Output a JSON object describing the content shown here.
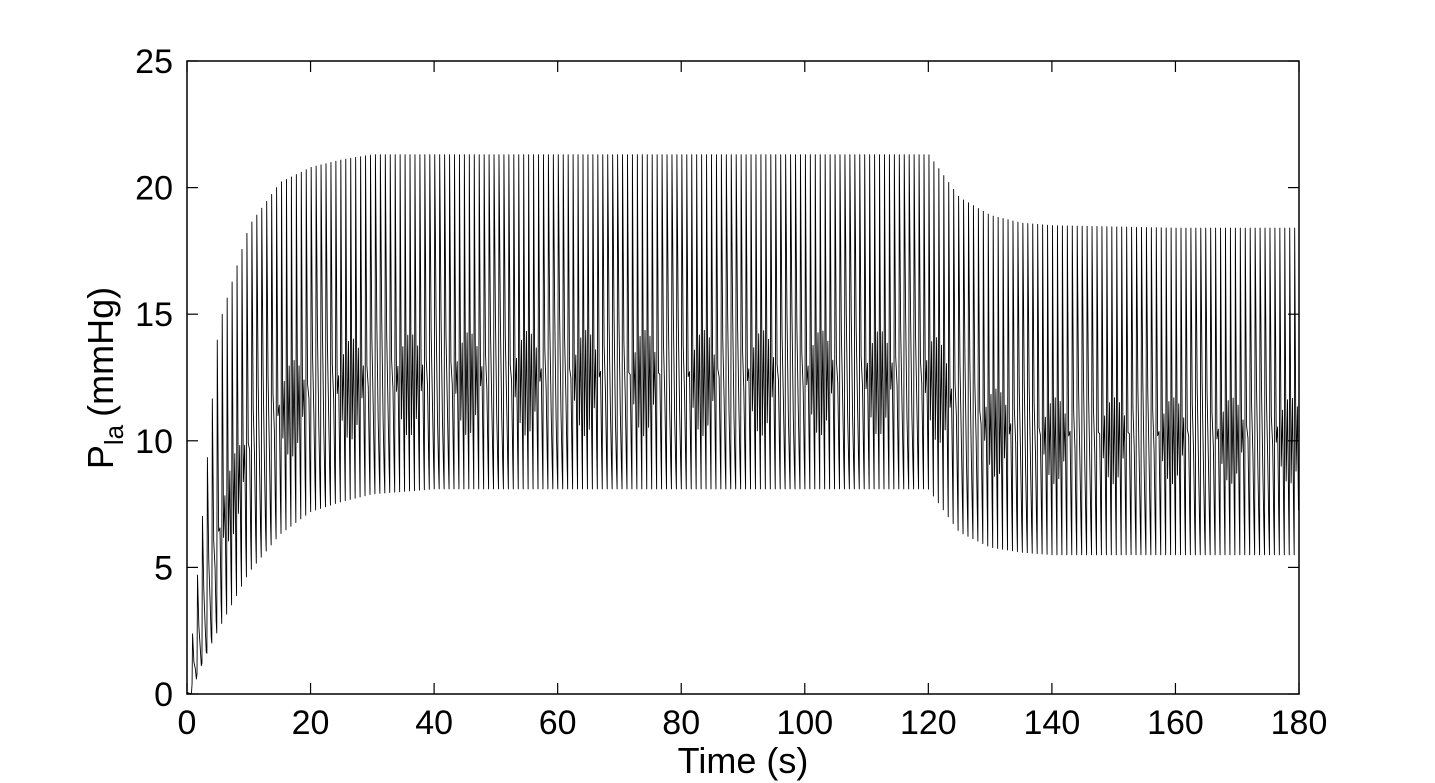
{
  "chart_data": {
    "type": "line",
    "xlabel": "Time (s)",
    "ylabel": {
      "main": "P",
      "subscript": "la",
      "unit": "(mmHg)"
    },
    "xlim": [
      0,
      180
    ],
    "ylim": [
      0,
      25
    ],
    "x_ticks": [
      "0",
      "20",
      "40",
      "60",
      "80",
      "100",
      "120",
      "140",
      "160",
      "180"
    ],
    "y_ticks": [
      "0",
      "5",
      "10",
      "15",
      "20",
      "25"
    ],
    "grid": false,
    "legend": "none",
    "line_color": "#000000",
    "series": [
      {
        "x": [
          0,
          5,
          10,
          15,
          20,
          25,
          30,
          40,
          60,
          80,
          100,
          120,
          125,
          130,
          135,
          140,
          160,
          180
        ],
        "upper_envelope": [
          0,
          14.5,
          18.5,
          20.2,
          20.8,
          21.1,
          21.3,
          21.3,
          21.3,
          21.3,
          21.3,
          21.3,
          19.6,
          18.9,
          18.6,
          18.5,
          18.4,
          18.4
        ],
        "lower_envelope": [
          0,
          2.5,
          4.8,
          6.3,
          7.2,
          7.6,
          7.9,
          8.1,
          8.1,
          8.1,
          8.1,
          8.1,
          6.4,
          5.8,
          5.6,
          5.5,
          5.5,
          5.5
        ],
        "band_upper": [
          0,
          8.5,
          12.0,
          13.6,
          14.3,
          14.7,
          14.9,
          15.0,
          15.1,
          15.1,
          15.1,
          15.1,
          13.5,
          12.7,
          12.4,
          12.3,
          12.3,
          12.3
        ],
        "band_lower": [
          0,
          5.0,
          8.0,
          9.2,
          9.7,
          10.0,
          10.1,
          10.2,
          10.2,
          10.2,
          10.2,
          10.2,
          9.0,
          8.6,
          8.4,
          8.3,
          8.3,
          8.3
        ],
        "cycle_period_s": 0.8
      }
    ]
  }
}
